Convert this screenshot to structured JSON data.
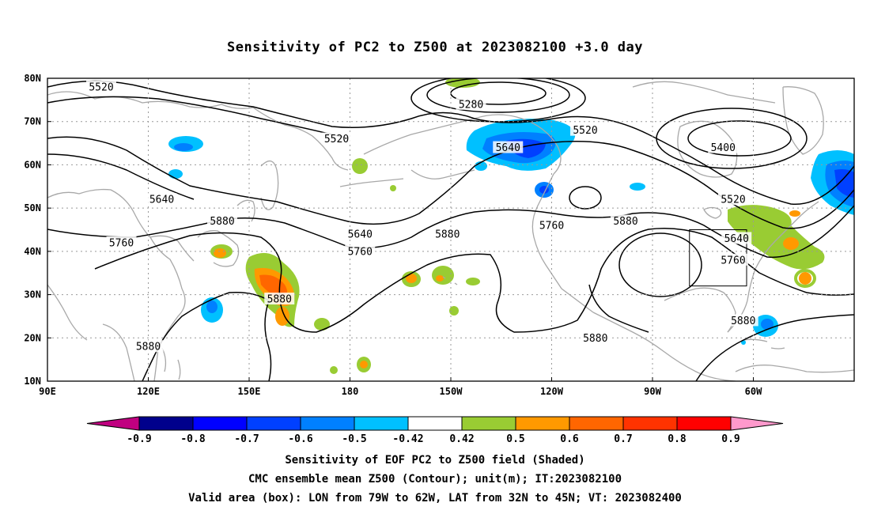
{
  "title": "Sensitivity of PC2 to Z500 at 2023082100 +3.0 day",
  "map": {
    "lon_ticks": [
      "90E",
      "120E",
      "150E",
      "180",
      "150W",
      "120W",
      "90W",
      "60W"
    ],
    "lat_ticks": [
      "80N",
      "70N",
      "60N",
      "50N",
      "40N",
      "30N",
      "20N",
      "10N"
    ],
    "contour_labels": [
      {
        "text": "5520",
        "lon": 106,
        "lat": 78
      },
      {
        "text": "5520",
        "lon": 176,
        "lat": 66
      },
      {
        "text": "5280",
        "lon": 216,
        "lat": 74
      },
      {
        "text": "5640",
        "lon": 227,
        "lat": 64
      },
      {
        "text": "5520",
        "lon": 250,
        "lat": 68
      },
      {
        "text": "5400",
        "lon": 291,
        "lat": 64
      },
      {
        "text": "5640",
        "lon": 124,
        "lat": 52
      },
      {
        "text": "5880",
        "lon": 142,
        "lat": 47
      },
      {
        "text": "5760",
        "lon": 112,
        "lat": 42
      },
      {
        "text": "5640",
        "lon": 183,
        "lat": 44
      },
      {
        "text": "5760",
        "lon": 183,
        "lat": 40
      },
      {
        "text": "5880",
        "lon": 209,
        "lat": 44
      },
      {
        "text": "5760",
        "lon": 240,
        "lat": 46
      },
      {
        "text": "5880",
        "lon": 262,
        "lat": 47
      },
      {
        "text": "5520",
        "lon": 294,
        "lat": 52
      },
      {
        "text": "5640",
        "lon": 295,
        "lat": 43
      },
      {
        "text": "5760",
        "lon": 294,
        "lat": 38
      },
      {
        "text": "5880",
        "lon": 159,
        "lat": 29
      },
      {
        "text": "5880",
        "lon": 297,
        "lat": 24
      },
      {
        "text": "5880",
        "lon": 253,
        "lat": 20
      },
      {
        "text": "5880",
        "lon": 120,
        "lat": 18
      }
    ],
    "valid_box": {
      "lon_w": 281,
      "lon_e": 298,
      "lat_s": 32,
      "lat_n": 45
    }
  },
  "colorbar": {
    "colors": [
      "#c00080",
      "#00008c",
      "#0000ff",
      "#0040ff",
      "#0080ff",
      "#00c0ff",
      "#ffffff",
      "#99cc33",
      "#ff9900",
      "#ff6600",
      "#ff3300",
      "#ff0000",
      "#ff99cc"
    ],
    "labels": [
      "-0.9",
      "-0.8",
      "-0.7",
      "-0.6",
      "-0.5",
      "-0.42",
      "0.42",
      "0.5",
      "0.6",
      "0.7",
      "0.8",
      "0.9"
    ]
  },
  "footer": {
    "line1": "Sensitivity of EOF PC2 to Z500 field (Shaded)",
    "line2": "CMC ensemble mean Z500 (Contour); unit(m); IT:2023082100",
    "line3": "Valid area (box): LON from 79W to 62W, LAT from 32N to 45N; VT: 2023082400"
  }
}
